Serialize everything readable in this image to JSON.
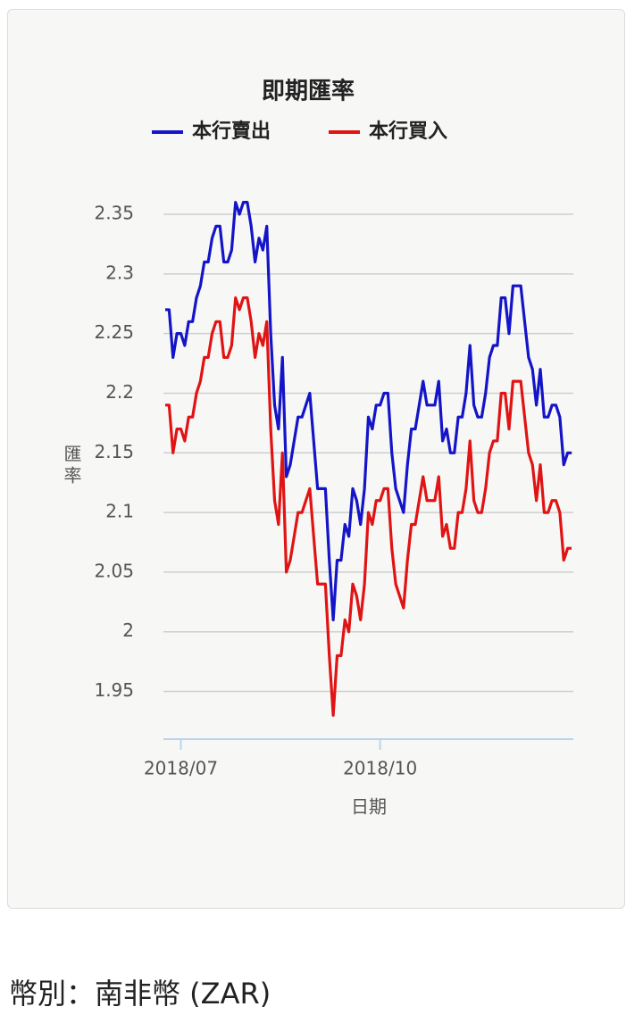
{
  "chart_data": {
    "type": "line",
    "title": "即期匯率",
    "x_label": "日期",
    "y_label": "匯率",
    "categories": [
      null,
      null,
      null,
      null,
      "2018/07",
      null,
      null,
      null,
      null,
      null,
      null,
      null,
      null,
      null,
      null,
      null,
      null,
      null,
      null,
      null,
      null,
      null,
      null,
      null,
      null,
      null,
      null,
      null,
      null,
      null,
      null,
      null,
      null,
      null,
      null,
      null,
      null,
      null,
      null,
      null,
      null,
      null,
      null,
      null,
      null,
      null,
      null,
      null,
      null,
      null,
      null,
      null,
      null,
      null,
      null,
      "2018/10",
      null,
      null,
      null,
      null,
      null,
      null,
      null,
      null,
      null,
      null,
      null,
      null,
      null,
      null,
      null,
      null,
      null,
      null,
      null,
      null,
      null,
      null,
      null,
      null,
      null,
      null,
      null,
      null,
      null,
      null,
      null,
      null,
      null,
      null,
      null,
      null,
      null,
      null,
      null,
      null,
      null,
      null,
      null,
      null,
      null,
      null,
      null,
      null,
      null
    ],
    "series": [
      {
        "name": "本行賣出",
        "color": "#1414c8",
        "values": [
          2.27,
          2.27,
          2.23,
          2.25,
          2.25,
          2.24,
          2.26,
          2.26,
          2.28,
          2.29,
          2.31,
          2.31,
          2.33,
          2.34,
          2.34,
          2.31,
          2.31,
          2.32,
          2.36,
          2.35,
          2.36,
          2.36,
          2.34,
          2.31,
          2.33,
          2.32,
          2.34,
          2.25,
          2.19,
          2.17,
          2.23,
          2.13,
          2.14,
          2.16,
          2.18,
          2.18,
          2.19,
          2.2,
          2.16,
          2.12,
          2.12,
          2.12,
          2.06,
          2.01,
          2.06,
          2.06,
          2.09,
          2.08,
          2.12,
          2.11,
          2.09,
          2.12,
          2.18,
          2.17,
          2.19,
          2.19,
          2.2,
          2.2,
          2.15,
          2.12,
          2.11,
          2.1,
          2.14,
          2.17,
          2.17,
          2.19,
          2.21,
          2.19,
          2.19,
          2.19,
          2.21,
          2.16,
          2.17,
          2.15,
          2.15,
          2.18,
          2.18,
          2.2,
          2.24,
          2.19,
          2.18,
          2.18,
          2.2,
          2.23,
          2.24,
          2.24,
          2.28,
          2.28,
          2.25,
          2.29,
          2.29,
          2.29,
          2.26,
          2.23,
          2.22,
          2.19,
          2.22,
          2.18,
          2.18,
          2.19,
          2.19,
          2.18,
          2.14,
          2.15,
          2.15
        ]
      },
      {
        "name": "本行買入",
        "color": "#e01414",
        "values": [
          2.19,
          2.19,
          2.15,
          2.17,
          2.17,
          2.16,
          2.18,
          2.18,
          2.2,
          2.21,
          2.23,
          2.23,
          2.25,
          2.26,
          2.26,
          2.23,
          2.23,
          2.24,
          2.28,
          2.27,
          2.28,
          2.28,
          2.26,
          2.23,
          2.25,
          2.24,
          2.26,
          2.17,
          2.11,
          2.09,
          2.15,
          2.05,
          2.06,
          2.08,
          2.1,
          2.1,
          2.11,
          2.12,
          2.08,
          2.04,
          2.04,
          2.04,
          1.98,
          1.93,
          1.98,
          1.98,
          2.01,
          2.0,
          2.04,
          2.03,
          2.01,
          2.04,
          2.1,
          2.09,
          2.11,
          2.11,
          2.12,
          2.12,
          2.07,
          2.04,
          2.03,
          2.02,
          2.06,
          2.09,
          2.09,
          2.11,
          2.13,
          2.11,
          2.11,
          2.11,
          2.13,
          2.08,
          2.09,
          2.07,
          2.07,
          2.1,
          2.1,
          2.12,
          2.16,
          2.11,
          2.1,
          2.1,
          2.12,
          2.15,
          2.16,
          2.16,
          2.2,
          2.2,
          2.17,
          2.21,
          2.21,
          2.21,
          2.18,
          2.15,
          2.14,
          2.11,
          2.14,
          2.1,
          2.1,
          2.11,
          2.11,
          2.1,
          2.06,
          2.07,
          2.07
        ]
      }
    ],
    "ylim": [
      1.91,
      2.37
    ],
    "yticks": [
      1.95,
      2,
      2.05,
      2.1,
      2.15,
      2.2,
      2.25,
      2.3,
      2.35
    ],
    "grid": true
  },
  "footer": {
    "currency": "幣別：南非幣 (ZAR)"
  }
}
